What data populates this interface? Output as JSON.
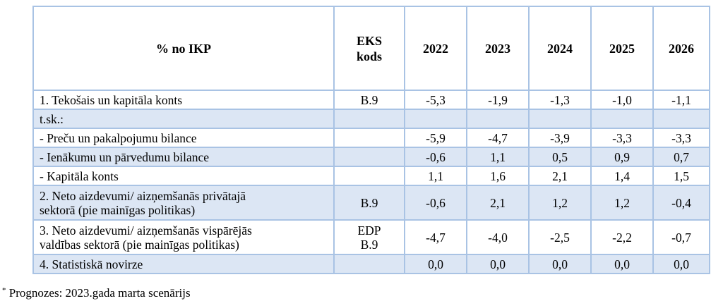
{
  "table": {
    "header": {
      "label": "% no IKP",
      "code_line1": "EKS",
      "code_line2": "kods",
      "years": [
        "2022",
        "2023",
        "2024",
        "2025",
        "2026"
      ]
    },
    "rows": [
      {
        "label": "1. Tekošais un kapitāla konts",
        "code": "B.9",
        "values": [
          "-5,3",
          "-1,9",
          "-1,3",
          "-1,0",
          "-1,1"
        ]
      },
      {
        "label": "t.sk.:",
        "code": "",
        "values": [
          "",
          "",
          "",
          "",
          ""
        ]
      },
      {
        "label": "- Preču un pakalpojumu bilance",
        "code": "",
        "values": [
          "-5,9",
          "-4,7",
          "-3,9",
          "-3,3",
          "-3,3"
        ]
      },
      {
        "label": "- Ienākumu un pārvedumu bilance",
        "code": "",
        "values": [
          "-0,6",
          "1,1",
          "0,5",
          "0,9",
          "0,7"
        ]
      },
      {
        "label": "- Kapitāla konts",
        "code": "",
        "values": [
          "1,1",
          "1,6",
          "2,1",
          "1,4",
          "1,5"
        ]
      },
      {
        "label_line1": "2. Neto aizdevumi/ aizņemšanās privātajā",
        "label_line2": "sektorā (pie mainīgas politikas)",
        "code": "B.9",
        "values": [
          "-0,6",
          "2,1",
          "1,2",
          "1,2",
          "-0,4"
        ]
      },
      {
        "label_line1": "3. Neto aizdevumi/ aizņemšanās vispārējās",
        "label_line2": "valdības sektorā (pie mainīgas politikas)",
        "code_line1": "EDP",
        "code_line2": "B.9",
        "values": [
          "-4,7",
          "-4,0",
          "-2,5",
          "-2,2",
          "-0,7"
        ]
      },
      {
        "label": "4. Statistiskā novirze",
        "code": "",
        "values": [
          "0,0",
          "0,0",
          "0,0",
          "0,0",
          "0,0"
        ]
      }
    ]
  },
  "footnote": {
    "marker": "*",
    "text": " Prognozes: 2023.gada marta scenārijs"
  },
  "colors": {
    "border": "#a9c3e4",
    "row_shade": "#dce6f4"
  }
}
